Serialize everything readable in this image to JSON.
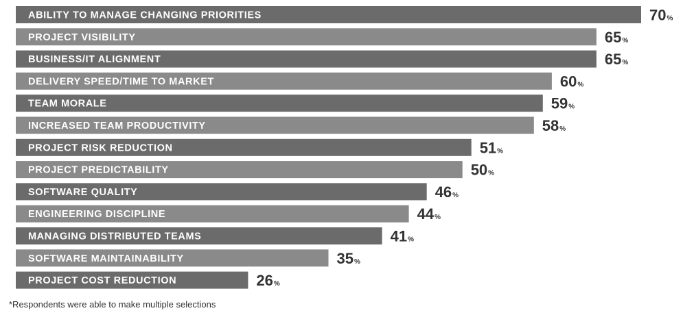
{
  "chart_data": {
    "type": "bar",
    "orientation": "horizontal",
    "unit_suffix": "%",
    "categories": [
      "ABILITY TO MANAGE CHANGING PRIORITIES",
      "PROJECT VISIBILITY",
      "BUSINESS/IT ALIGNMENT",
      "DELIVERY SPEED/TIME TO MARKET",
      "TEAM MORALE",
      "INCREASED TEAM PRODUCTIVITY",
      "PROJECT RISK REDUCTION",
      "PROJECT PREDICTABILITY",
      "SOFTWARE QUALITY",
      "ENGINEERING DISCIPLINE",
      "MANAGING DISTRIBUTED TEAMS",
      "SOFTWARE MAINTAINABILITY",
      "PROJECT COST REDUCTION"
    ],
    "values": [
      70,
      65,
      65,
      60,
      59,
      58,
      51,
      50,
      46,
      44,
      41,
      35,
      26
    ],
    "colors": {
      "dark": "#6b6b6b",
      "light": "#8a8a8a",
      "value_text": "#333333"
    },
    "grid": false,
    "legend": "none"
  },
  "footnote": "*Respondents were able to make multiple selections"
}
